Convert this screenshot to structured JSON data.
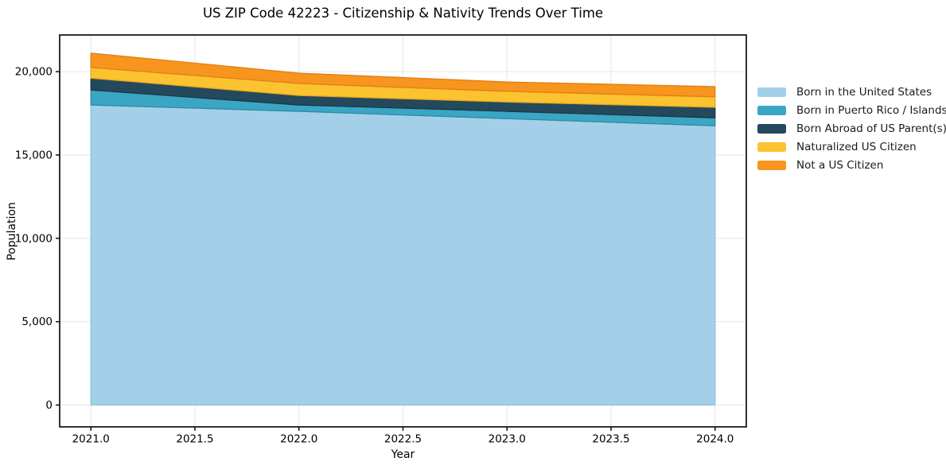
{
  "chart_data": {
    "type": "area",
    "stacked": true,
    "title": "US ZIP Code 42223 - Citizenship & Nativity Trends Over Time",
    "xlabel": "Year",
    "ylabel": "Population",
    "x": [
      2021.0,
      2022.0,
      2023.0,
      2024.0
    ],
    "series": [
      {
        "name": "Born in the United States",
        "color": "#a3d0e8",
        "edge_color": "#8cc0dc",
        "values": [
          18000,
          17620,
          17180,
          16750
        ]
      },
      {
        "name": "Born in Puerto Rico / Islands",
        "color": "#3aa6c4",
        "edge_color": "#2e8aa6",
        "values": [
          900,
          380,
          440,
          480
        ]
      },
      {
        "name": "Born Abroad of US Parent(s)",
        "color": "#24495c",
        "edge_color": "#1a3747",
        "values": [
          710,
          570,
          560,
          630
        ]
      },
      {
        "name": "Naturalized US Citizen",
        "color": "#fcc330",
        "edge_color": "#e5a71f",
        "values": [
          640,
          720,
          640,
          630
        ]
      },
      {
        "name": "Not a US Citizen",
        "color": "#f7951f",
        "edge_color": "#e07f15",
        "values": [
          860,
          620,
          560,
          610
        ]
      }
    ],
    "x_tick_labels": [
      "2021.0",
      "2021.5",
      "2022.0",
      "2022.5",
      "2023.0",
      "2023.5",
      "2024.0"
    ],
    "y_tick_labels": [
      "0",
      "5,000",
      "10,000",
      "15,000",
      "20,000"
    ],
    "xlim": [
      2020.85,
      2024.15
    ],
    "ylim": [
      -1310,
      22200
    ],
    "grid": true,
    "grid_color": "#e8e8e8",
    "spine_color": "#000000",
    "background": "#ffffff",
    "legend_position": "right-outside"
  }
}
